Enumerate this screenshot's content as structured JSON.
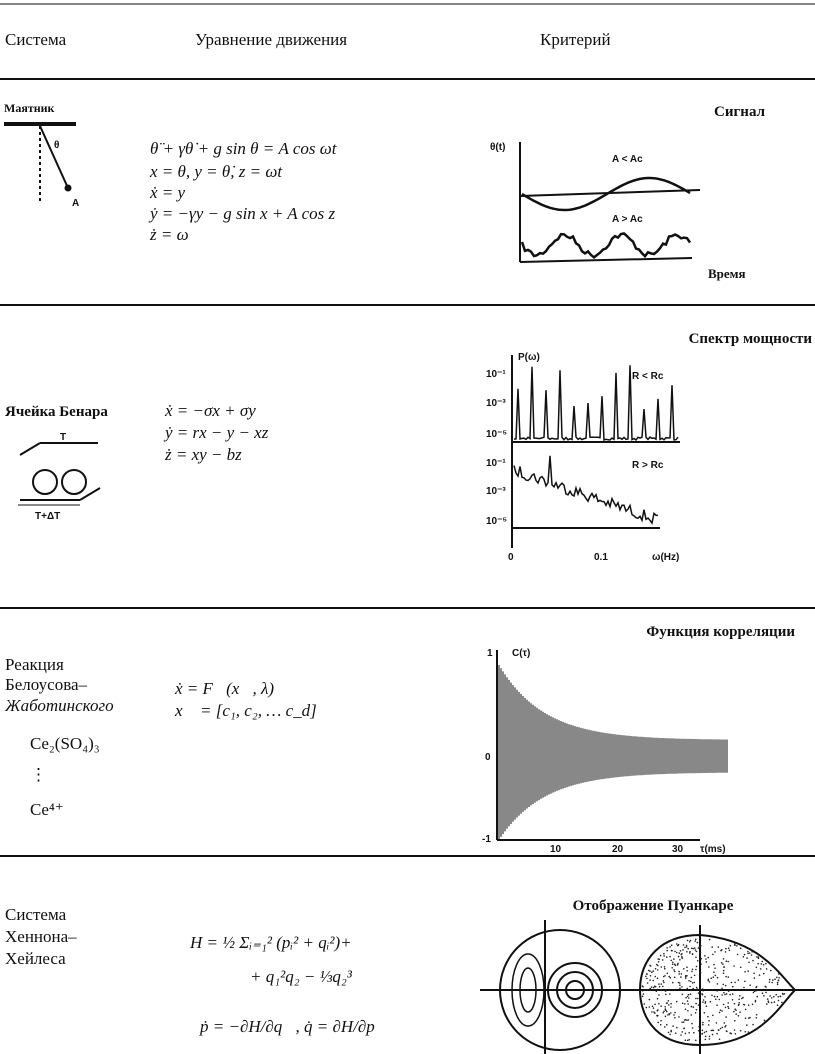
{
  "header": {
    "columns": [
      "Система",
      "Уравнение движения",
      "Критерий"
    ]
  },
  "rows": [
    {
      "system": {
        "lines": [
          "Маятник"
        ],
        "labels": [
          "θ",
          "A"
        ]
      },
      "equations": [
        "θ̈ + γθ̇ + g sin θ = A cos ωt",
        "x = θ,  y = θ̇,  z = ωt",
        "ẋ = y",
        "ẏ = −γy − g sin x + A cos z",
        "ż = ω"
      ],
      "criterion": {
        "title": "Сигнал",
        "labels": [
          "θ(t)",
          "A < Ac",
          "A > Ac",
          "Время"
        ]
      }
    },
    {
      "system": {
        "lines": [
          "Ячейка Бенара"
        ],
        "labels": [
          "T",
          "T+ΔT"
        ]
      },
      "equations": [
        "ẋ = −σx + σy",
        "ẏ = rx − y − xz",
        "ż = xy − bz"
      ],
      "criterion": {
        "title": "Спектр мощности",
        "labels": [
          "P(ω)",
          "R < Rc",
          "R > Rc",
          "10⁻¹",
          "10⁻³",
          "10⁻⁵",
          "10⁻¹",
          "10⁻³",
          "10⁻⁵",
          "0",
          "0.1",
          "ω(Hz)"
        ]
      }
    },
    {
      "system": {
        "lines": [
          "Реакция",
          "Белоусова–",
          "Жаботинского"
        ],
        "labels": [
          "Ce₂(SO₄)₃",
          "⋮",
          "Ce⁴⁺"
        ]
      },
      "equations": [
        "ẋ = F⃗(x⃗, λ)",
        "x⃗ = [c₁, c₂, … c_d]"
      ],
      "criterion": {
        "title": "Функция корреляции",
        "labels": [
          "C(τ)",
          "1",
          "0",
          "-1",
          "10",
          "20",
          "30",
          "τ(ms)"
        ]
      }
    },
    {
      "system": {
        "lines": [
          "Система",
          "Хеннона–",
          "Хейлеса"
        ],
        "labels": []
      },
      "equations": [
        "H = ½ Σᵢ₌₁² (pᵢ² + qᵢ²)+",
        "+ q₁²q₂ − ⅓q₂³",
        "ṗ = −∂H/∂q⃗,  q̇ = ∂H/∂p⃗"
      ],
      "criterion": {
        "title": "Отображение Пуанкаре",
        "labels": []
      }
    }
  ]
}
